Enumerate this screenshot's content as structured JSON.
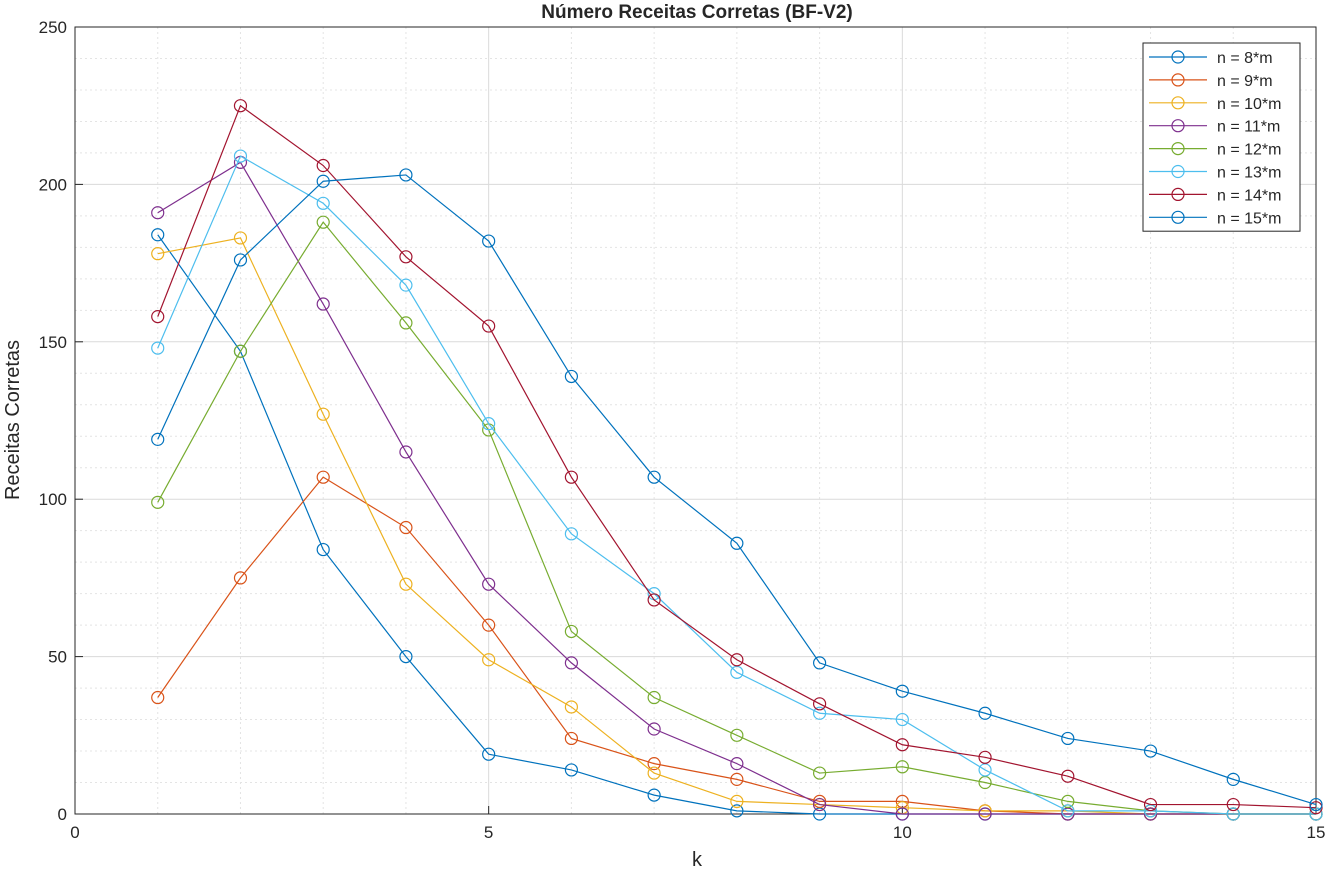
{
  "chart_data": {
    "type": "line",
    "title": "Número Receitas Corretas (BF-V2)",
    "xlabel": "k",
    "ylabel": "Receitas Corretas",
    "xlim": [
      0,
      15
    ],
    "ylim": [
      0,
      250
    ],
    "xticks": [
      0,
      5,
      10,
      15
    ],
    "yticks": [
      0,
      50,
      100,
      150,
      200,
      250
    ],
    "grid": true,
    "minor_grid": true,
    "legend_position": "top-right",
    "marker": "circle",
    "x": [
      1,
      2,
      3,
      4,
      5,
      6,
      7,
      8,
      9,
      10,
      11,
      12,
      13,
      14,
      15
    ],
    "series": [
      {
        "name": "n = 8*m",
        "color": "#0072BD",
        "values": [
          184,
          147,
          84,
          50,
          19,
          14,
          6,
          1,
          0,
          0,
          0,
          0,
          0,
          0,
          0
        ]
      },
      {
        "name": "n = 9*m",
        "color": "#D95319",
        "values": [
          37,
          75,
          107,
          91,
          60,
          24,
          16,
          11,
          4,
          4,
          1,
          0,
          0,
          0,
          0
        ]
      },
      {
        "name": "n = 10*m",
        "color": "#EDB120",
        "values": [
          178,
          183,
          127,
          73,
          49,
          34,
          13,
          4,
          3,
          2,
          1,
          1,
          0,
          0,
          0
        ]
      },
      {
        "name": "n = 11*m",
        "color": "#7E2F8E",
        "values": [
          191,
          207,
          162,
          115,
          73,
          48,
          27,
          16,
          3,
          0,
          0,
          0,
          0,
          0,
          0
        ]
      },
      {
        "name": "n = 12*m",
        "color": "#77AC30",
        "values": [
          99,
          147,
          188,
          156,
          122,
          58,
          37,
          25,
          13,
          15,
          10,
          4,
          1,
          0,
          0
        ]
      },
      {
        "name": "n = 13*m",
        "color": "#4DBEEE",
        "values": [
          148,
          209,
          194,
          168,
          124,
          89,
          70,
          45,
          32,
          30,
          14,
          1,
          1,
          0,
          0
        ]
      },
      {
        "name": "n = 14*m",
        "color": "#A2142F",
        "values": [
          158,
          225,
          206,
          177,
          155,
          107,
          68,
          49,
          35,
          22,
          18,
          12,
          3,
          3,
          2
        ]
      },
      {
        "name": "n = 15*m",
        "color": "#0072BD",
        "values": [
          119,
          176,
          201,
          203,
          182,
          139,
          107,
          86,
          48,
          39,
          32,
          24,
          20,
          11,
          3
        ]
      }
    ]
  }
}
